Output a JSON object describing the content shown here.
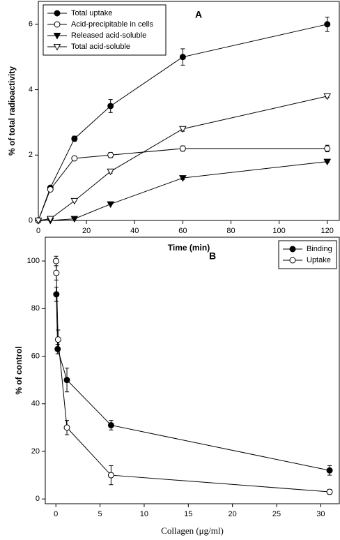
{
  "chart_data": [
    {
      "type": "line",
      "panel_label": "A",
      "x_label": "Time (min)",
      "y_label": "% of total radioactivity",
      "xlim": [
        0,
        125
      ],
      "xticks": [
        0,
        20,
        40,
        60,
        80,
        100,
        120
      ],
      "ylim": [
        0,
        6.7
      ],
      "yticks": [
        0,
        2,
        4,
        6
      ],
      "legend": "upper left",
      "series": [
        {
          "name": "Total uptake",
          "color": "#000000",
          "marker": "circle",
          "filled": true,
          "x": [
            0,
            5,
            15,
            30,
            60,
            120
          ],
          "values": [
            0,
            1.0,
            2.5,
            3.5,
            5.0,
            6.0
          ],
          "errors": [
            0,
            0.05,
            0.08,
            0.2,
            0.25,
            0.22
          ]
        },
        {
          "name": "Acid-precipitable in cells",
          "color": "#000000",
          "marker": "circle",
          "filled": false,
          "x": [
            0,
            5,
            15,
            30,
            60,
            120
          ],
          "values": [
            0,
            0.95,
            1.9,
            2.0,
            2.2,
            2.2
          ],
          "errors": [
            0,
            0.05,
            0.05,
            0.08,
            0.08,
            0.1
          ]
        },
        {
          "name": "Released acid-soluble",
          "color": "#000000",
          "marker": "triangle-down",
          "filled": true,
          "x": [
            0,
            5,
            15,
            30,
            60,
            120
          ],
          "values": [
            0,
            0,
            0.05,
            0.5,
            1.3,
            1.8
          ],
          "errors": [
            0,
            0,
            0,
            0,
            0.05,
            0.03
          ]
        },
        {
          "name": "Total acid-soluble",
          "color": "#000000",
          "marker": "triangle-down",
          "filled": false,
          "x": [
            0,
            5,
            15,
            30,
            60,
            120
          ],
          "values": [
            0,
            0.05,
            0.6,
            1.5,
            2.8,
            3.8
          ],
          "errors": [
            0,
            0,
            0,
            0.05,
            0.07,
            0.05
          ]
        }
      ]
    },
    {
      "type": "line",
      "panel_label": "B",
      "x_label": "Collagen (μg/ml)",
      "y_label": "% of control",
      "xlim": [
        -1.2,
        32.1
      ],
      "xticks": [
        0,
        5,
        10,
        15,
        20,
        25,
        30
      ],
      "ylim": [
        -2,
        110
      ],
      "yticks": [
        0,
        20,
        40,
        60,
        80,
        100
      ],
      "legend": "upper right",
      "series": [
        {
          "name": "Binding",
          "color": "#000000",
          "marker": "circle",
          "filled": true,
          "x": [
            0.05,
            0.2,
            1.25,
            6.25,
            31
          ],
          "values": [
            86,
            63,
            50,
            31,
            12
          ],
          "errors": [
            3,
            2,
            5,
            2,
            2
          ]
        },
        {
          "name": "Uptake",
          "color": "#000000",
          "marker": "circle",
          "filled": false,
          "x": [
            0.02,
            0.05,
            0.25,
            1.25,
            6.25,
            31
          ],
          "values": [
            100,
            95,
            67,
            30,
            10,
            3
          ],
          "errors": [
            2,
            3,
            4,
            3,
            4,
            1
          ]
        }
      ]
    }
  ]
}
